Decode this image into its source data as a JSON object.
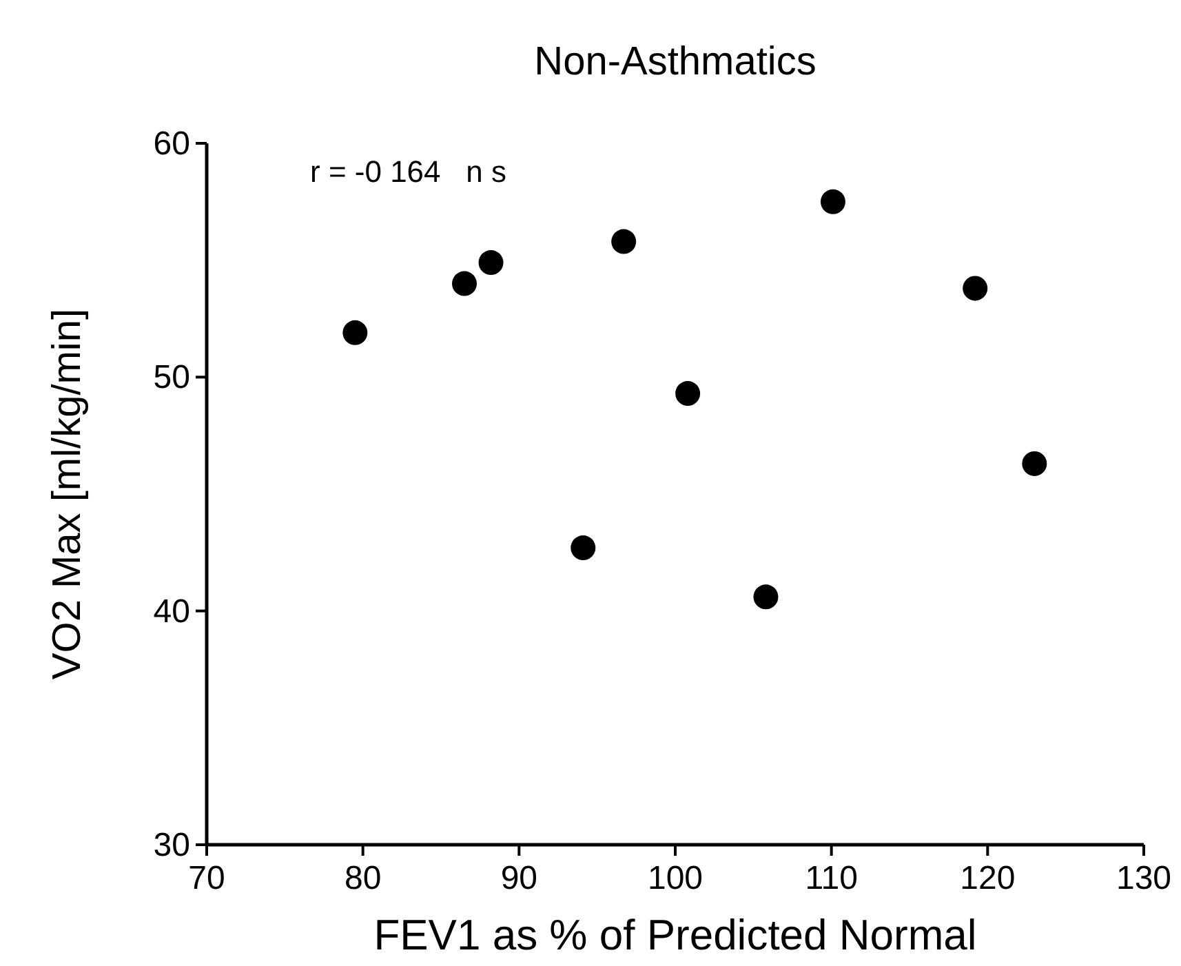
{
  "chart_data": {
    "type": "scatter",
    "title": "Non-Asthmatics",
    "xlabel": "FEV1 as % of Predicted Normal",
    "ylabel": "VO2 Max [ml/kg/min]",
    "x": [
      79.5,
      86.5,
      88.2,
      96.7,
      110.1,
      119.2,
      100.8,
      123.0,
      94.1,
      105.8
    ],
    "values": [
      51.9,
      54.0,
      54.9,
      55.8,
      57.5,
      53.8,
      49.3,
      46.3,
      42.7,
      40.6
    ],
    "color": "#000000",
    "marker": "circle",
    "xlim": [
      70,
      130
    ],
    "xticks": [
      70,
      80,
      90,
      100,
      110,
      120,
      130
    ],
    "ylim": [
      30,
      60
    ],
    "yticks": [
      30,
      40,
      50,
      60
    ],
    "annotations": [
      "r = -0 164   n s"
    ]
  }
}
